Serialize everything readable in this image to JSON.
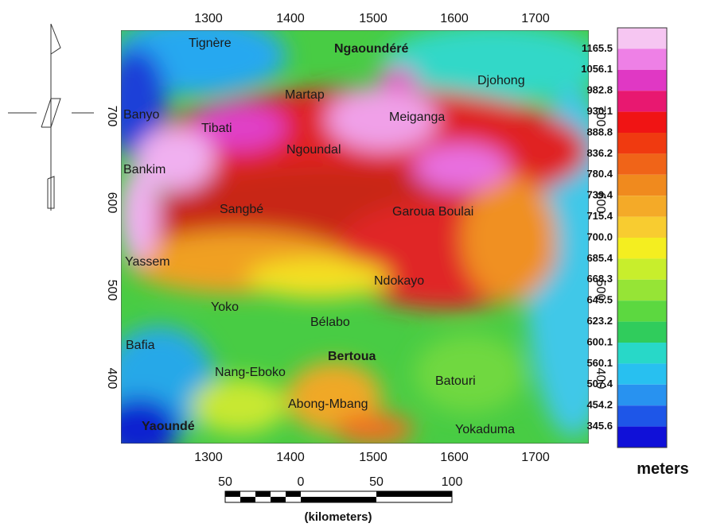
{
  "map": {
    "top_axis": [
      1300,
      1400,
      1500,
      1600,
      1700
    ],
    "bottom_axis": [
      1300,
      1400,
      1500,
      1600,
      1700
    ],
    "left_axis": [
      700,
      600,
      500,
      400
    ],
    "right_axis": [
      700,
      600,
      500,
      400
    ],
    "places": [
      "Tignère",
      "Ngaoundéré",
      "Djohong",
      "Martap",
      "Banyo",
      "Tibati",
      "Meiganga",
      "Ngoundal",
      "Bankim",
      "Sangbé",
      "Garoua Boulai",
      "Yassem",
      "Ndokayo",
      "Yoko",
      "Bélabo",
      "Bafia",
      "Bertoua",
      "Nang-Eboko",
      "Batouri",
      "Abong-Mbang",
      "Yaoundé",
      "Yokaduma"
    ],
    "legend": {
      "labels": [
        "1165.5",
        "1056.1",
        "982.8",
        "930.1",
        "888.8",
        "836.2",
        "780.4",
        "739.4",
        "715.4",
        "700.0",
        "685.4",
        "668.3",
        "645.5",
        "623.2",
        "600.1",
        "560.1",
        "507.4",
        "454.2",
        "345.6"
      ],
      "colors": [
        "#f6c6f2",
        "#ee80e6",
        "#e038c4",
        "#e81870",
        "#f01414",
        "#f03a10",
        "#f06418",
        "#f08a1e",
        "#f4aa28",
        "#f8cc30",
        "#f4ee20",
        "#c8ee2c",
        "#96e436",
        "#5cd840",
        "#30cc5c",
        "#28d8c8",
        "#28c0f0",
        "#2892f0",
        "#1e56e8",
        "#1010d8"
      ],
      "unit": "meters"
    },
    "scale_bar": {
      "labels": [
        "50",
        "0",
        "50",
        "100"
      ],
      "unit": "(kilometers)"
    }
  }
}
